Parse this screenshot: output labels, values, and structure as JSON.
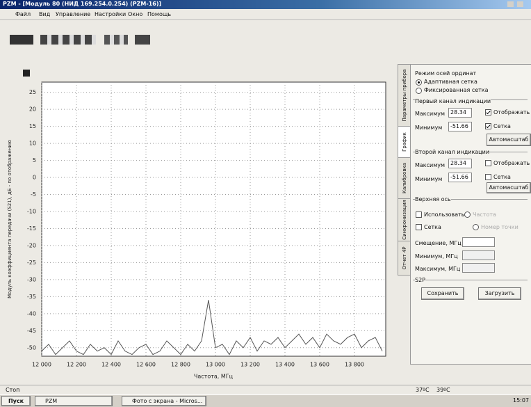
{
  "window": {
    "title": "PZM - [Модуль 80 (НИД 169.254.0.254) (PZM-16)]",
    "menu": [
      "Файл",
      "Вид",
      "Управление",
      "Настройки",
      "Окно",
      "Помощь"
    ]
  },
  "chart_data": {
    "type": "line",
    "y_label": "Модуль коэффициента передачи (S21), дБ - по отображению",
    "x_label": "Частота, МГц",
    "x": [
      12000,
      12040,
      12080,
      12120,
      12160,
      12200,
      12240,
      12280,
      12320,
      12360,
      12400,
      12440,
      12480,
      12520,
      12560,
      12600,
      12640,
      12680,
      12720,
      12760,
      12800,
      12840,
      12880,
      12920,
      12960,
      13000,
      13040,
      13080,
      13120,
      13160,
      13200,
      13240,
      13280,
      13320,
      13360,
      13400,
      13440,
      13480,
      13520,
      13560,
      13600,
      13640,
      13680,
      13720,
      13760,
      13800,
      13840,
      13880,
      13920,
      13960
    ],
    "series": [
      {
        "color": "#555555",
        "values": [
          -51,
          -49,
          -52,
          -50,
          -48,
          -51,
          -52,
          -49,
          -51,
          -50,
          -52,
          -48,
          -51,
          -52,
          -50,
          -49,
          -52,
          -51,
          -48,
          -50,
          -52,
          -49,
          -51,
          -48,
          -36,
          -50,
          -49,
          -52,
          -48,
          -50,
          -47,
          -51,
          -48,
          -49,
          -47,
          -50,
          -48,
          -46,
          -49,
          -47,
          -50,
          -46,
          -48,
          -49,
          -47,
          -46,
          -50,
          -48,
          -47,
          -51
        ]
      }
    ],
    "xlim": [
      12000,
      13980
    ],
    "ylim": [
      -52.5,
      28
    ],
    "xticks": [
      {
        "value": 12000,
        "label": "12 000"
      },
      {
        "value": 12200,
        "label": "12 200"
      },
      {
        "value": 12400,
        "label": "12 400"
      },
      {
        "value": 12600,
        "label": "12 600"
      },
      {
        "value": 12800,
        "label": "12 800"
      },
      {
        "value": 13000,
        "label": "13 000"
      },
      {
        "value": 13200,
        "label": "13 200"
      },
      {
        "value": 13400,
        "label": "13 400"
      },
      {
        "value": 13600,
        "label": "13 600"
      },
      {
        "value": 13800,
        "label": "13 800"
      }
    ],
    "yticks": [
      25,
      20,
      15,
      10,
      5,
      0,
      -5,
      -10,
      -15,
      -20,
      -25,
      -30,
      -35,
      -40,
      -45,
      -50
    ],
    "grid": true
  },
  "panel": {
    "tabs": [
      "Параметры прибора",
      "График",
      "Калибровка",
      "Синхронизация",
      "Отчет 4Р"
    ],
    "axis_mode": {
      "title": "Режим осей ординат",
      "options": [
        "Адаптивная сетка",
        "Фиксированная сетка"
      ]
    },
    "channel1": {
      "title": "Первый канал индикации",
      "max_label": "Максимум",
      "max": "28.34",
      "min_label": "Минимум",
      "min": "-51.66",
      "show": "Отображать",
      "grid": "Сетка",
      "autoscale": "Автомасштаб"
    },
    "channel2": {
      "title": "Второй канал индикации",
      "max_label": "Максимум",
      "max": "28.34",
      "min_label": "Минимум",
      "min": "-51.66",
      "show": "Отображать",
      "grid": "Сетка",
      "autoscale": "Автомасштаб"
    },
    "top_axis": {
      "title": "Верхняя ось",
      "use": "Использовать",
      "frequency": "Частота",
      "grid": "Сетка",
      "point": "Номер точки",
      "offset": "Смещение, МГц",
      "min": "Минимум, МГц",
      "max": "Максимум, МГц"
    },
    "s2p": {
      "title": "S2P",
      "save": "Сохранить",
      "load": "Загрузить"
    }
  },
  "status": {
    "state": "Стоп",
    "temp1": "37ºC",
    "temp2": "39ºC"
  },
  "taskbar": {
    "start": "Пуск",
    "items": [
      "PZM",
      "Фото с экрана - Micros..."
    ],
    "time": "15:07"
  }
}
